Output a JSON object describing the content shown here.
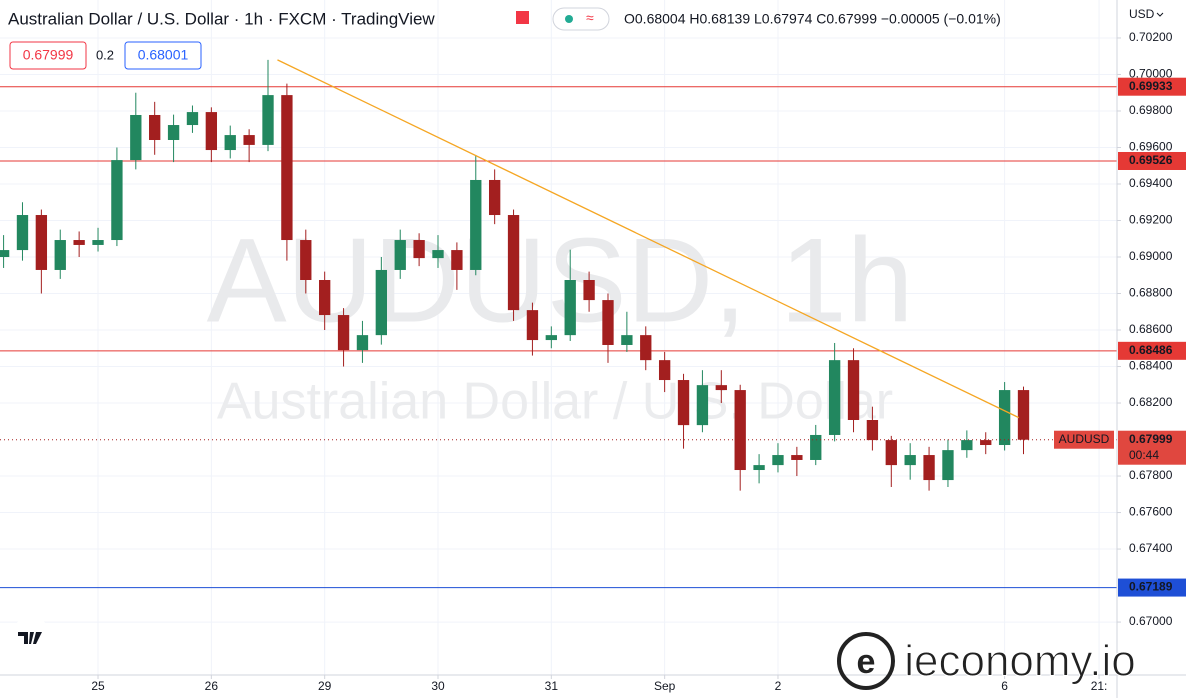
{
  "chart_data": {
    "type": "candlestick",
    "title": "Australian Dollar / U.S. Dollar · 1h · FXCM · TradingView",
    "ohlc_legend": "O0.68004 H0.68139 L0.67974 C0.67999 −0.00005 (−0.01%)",
    "bid": "0.67999",
    "spread": "0.2",
    "ask": "0.68001",
    "currency": "USD",
    "watermark": "AUDUSD, 1h",
    "watermark_sub": "Australian Dollar / U.S. Dollar",
    "brand": "ieconomy.io",
    "symbol": "AUDUSD",
    "countdown": "00:44",
    "up_color": "#22875f",
    "down_color": "#a31f1f",
    "grid": true,
    "xlim": [
      -20.76,
      215.8
    ],
    "ylim": [
      0.6671,
      0.70408
    ],
    "xticks": [
      {
        "value": 0,
        "label": "25"
      },
      {
        "value": 24,
        "label": "26"
      },
      {
        "value": 48,
        "label": "29"
      },
      {
        "value": 72,
        "label": "30"
      },
      {
        "value": 96,
        "label": "31"
      },
      {
        "value": 120,
        "label": "Sep"
      },
      {
        "value": 144,
        "label": "2"
      },
      {
        "value": 192,
        "label": "6"
      },
      {
        "value": 212,
        "label": "21:"
      }
    ],
    "yticks": [
      {
        "value": 0.702,
        "label": "0.70200"
      },
      {
        "value": 0.7,
        "label": "0.70000"
      },
      {
        "value": 0.698,
        "label": "0.69800"
      },
      {
        "value": 0.696,
        "label": "0.69600"
      },
      {
        "value": 0.694,
        "label": "0.69400"
      },
      {
        "value": 0.692,
        "label": "0.69200"
      },
      {
        "value": 0.69,
        "label": "0.69000"
      },
      {
        "value": 0.688,
        "label": "0.68800"
      },
      {
        "value": 0.686,
        "label": "0.68600"
      },
      {
        "value": 0.684,
        "label": "0.68400"
      },
      {
        "value": 0.682,
        "label": "0.68200"
      },
      {
        "value": 0.678,
        "label": "0.67800"
      },
      {
        "value": 0.676,
        "label": "0.67600"
      },
      {
        "value": 0.674,
        "label": "0.67400"
      },
      {
        "value": 0.67,
        "label": "0.67000"
      }
    ],
    "levels": [
      {
        "value": 0.69933,
        "label": "0.69933",
        "color": "#e53935"
      },
      {
        "value": 0.69526,
        "label": "0.69526",
        "color": "#e53935"
      },
      {
        "value": 0.68486,
        "label": "0.68486",
        "color": "#e53935"
      },
      {
        "value": 0.67189,
        "label": "0.67189",
        "color": "#1e4fd6"
      }
    ],
    "trendline": {
      "x": [
        38,
        195
      ],
      "y": [
        0.7008,
        0.6812
      ],
      "color": "#f5a623"
    },
    "x": [
      -20,
      -16,
      -12,
      -8,
      -4,
      0,
      4,
      8,
      12,
      16,
      20,
      24,
      28,
      32,
      36,
      40,
      44,
      48,
      52,
      56,
      60,
      64,
      68,
      72,
      76,
      80,
      84,
      88,
      92,
      96,
      100,
      104,
      108,
      112,
      116,
      120,
      124,
      128,
      132,
      136,
      140,
      144,
      148,
      152,
      156,
      160,
      164,
      168,
      172,
      176,
      180,
      184,
      188,
      192,
      196
    ],
    "open": [
      0.69,
      0.69038,
      0.6923,
      0.68929,
      0.69093,
      0.69066,
      0.69093,
      0.69531,
      0.69778,
      0.69641,
      0.69723,
      0.69794,
      0.69586,
      0.69668,
      0.69614,
      0.69887,
      0.69093,
      0.68874,
      0.68682,
      0.6849,
      0.68572,
      0.68929,
      0.69093,
      0.68994,
      0.69038,
      0.68929,
      0.69422,
      0.6923,
      0.68709,
      0.68545,
      0.68572,
      0.68874,
      0.68764,
      0.68518,
      0.68572,
      0.68435,
      0.68326,
      0.68079,
      0.68298,
      0.68271,
      0.67833,
      0.6786,
      0.67915,
      0.67888,
      0.68025,
      0.68435,
      0.68107,
      0.67997,
      0.6786,
      0.67915,
      0.67778,
      0.67942,
      0.67997,
      0.6797,
      0.68271
    ],
    "high": [
      0.6912,
      0.693,
      0.6926,
      0.6915,
      0.6914,
      0.6916,
      0.696,
      0.699,
      0.6985,
      0.6978,
      0.6983,
      0.6982,
      0.6972,
      0.697,
      0.7008,
      0.6995,
      0.6915,
      0.6892,
      0.6872,
      0.6865,
      0.69,
      0.6915,
      0.6913,
      0.6912,
      0.6908,
      0.69559,
      0.6948,
      0.6926,
      0.6875,
      0.6862,
      0.6904,
      0.6892,
      0.688,
      0.687,
      0.6862,
      0.6848,
      0.6836,
      0.6838,
      0.6838,
      0.683,
      0.6792,
      0.6798,
      0.6796,
      0.6808,
      0.68529,
      0.685,
      0.6818,
      0.6802,
      0.6798,
      0.6796,
      0.68,
      0.6805,
      0.6804,
      0.68315,
      0.6829
    ],
    "low": [
      0.6894,
      0.6898,
      0.688,
      0.6888,
      0.69,
      0.6903,
      0.6906,
      0.6948,
      0.6956,
      0.6952,
      0.6968,
      0.6952,
      0.6954,
      0.6952,
      0.6958,
      0.6898,
      0.688,
      0.686,
      0.684,
      0.6842,
      0.6852,
      0.6888,
      0.6895,
      0.6894,
      0.6882,
      0.689,
      0.6918,
      0.6865,
      0.6846,
      0.685,
      0.6854,
      0.687,
      0.6842,
      0.6848,
      0.6838,
      0.6826,
      0.6795,
      0.6804,
      0.682,
      0.6772,
      0.6776,
      0.6782,
      0.678,
      0.6786,
      0.6799,
      0.6804,
      0.6794,
      0.6774,
      0.6778,
      0.6772,
      0.6774,
      0.679,
      0.6792,
      0.6794,
      0.6792
    ],
    "close": [
      0.69038,
      0.6923,
      0.68929,
      0.69093,
      0.69066,
      0.69093,
      0.69531,
      0.69778,
      0.69641,
      0.69723,
      0.69794,
      0.69586,
      0.69668,
      0.69614,
      0.69887,
      0.69093,
      0.68874,
      0.68682,
      0.6849,
      0.68572,
      0.68929,
      0.69093,
      0.68994,
      0.69038,
      0.68929,
      0.69422,
      0.6923,
      0.68709,
      0.68545,
      0.68572,
      0.68874,
      0.68764,
      0.68518,
      0.68572,
      0.68435,
      0.68326,
      0.68079,
      0.68298,
      0.68271,
      0.67833,
      0.6786,
      0.67915,
      0.67888,
      0.68025,
      0.68435,
      0.68107,
      0.67997,
      0.6786,
      0.67915,
      0.67778,
      0.67942,
      0.67997,
      0.6797,
      0.68271,
      0.67999
    ]
  }
}
